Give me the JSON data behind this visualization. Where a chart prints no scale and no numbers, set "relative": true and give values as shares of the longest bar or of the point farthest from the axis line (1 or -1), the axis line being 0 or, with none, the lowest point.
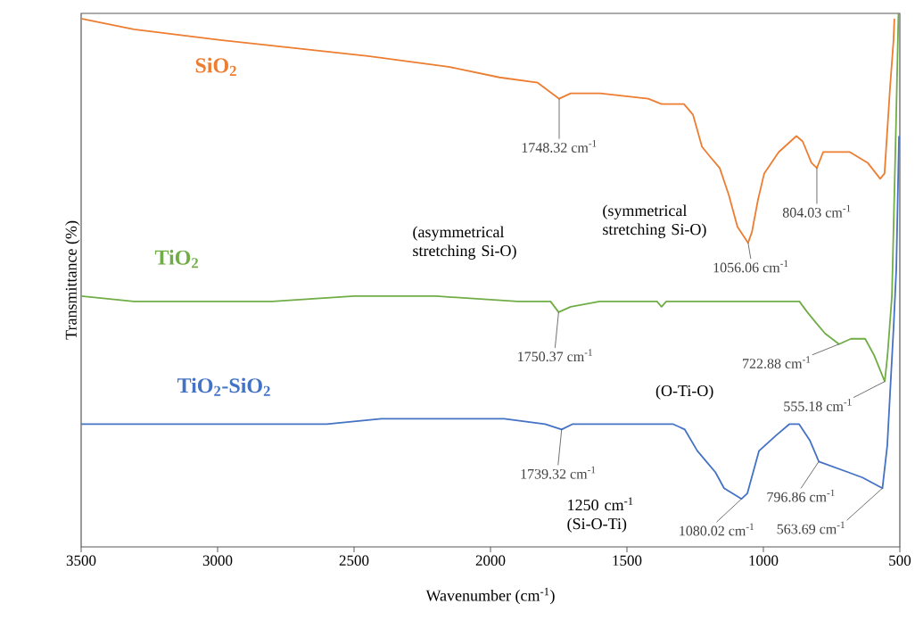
{
  "chart_data": {
    "type": "line",
    "relative": true,
    "xlabel": "Wavenumber (cm$^{-1}$)",
    "ylabel": "Transmittance (%)",
    "xlim": [
      3500,
      500
    ],
    "xticks": [
      3500,
      3000,
      2500,
      2000,
      1500,
      1000,
      500
    ],
    "series": [
      {
        "name": "SiO$_{2}$",
        "color": "#ed7d31",
        "x": [
          3500,
          3307,
          2990,
          2448,
          2154,
          1967,
          1827,
          1748.32,
          1706,
          1598,
          1422,
          1373,
          1346,
          1291,
          1258,
          1225,
          1193,
          1160,
          1127,
          1095,
          1056.06,
          1042,
          1020,
          997,
          944,
          879,
          856,
          824,
          804.03,
          781,
          748,
          683,
          618,
          572,
          556,
          536,
          523,
          520
        ],
        "values": [
          0.99,
          0.97,
          0.95,
          0.92,
          0.9,
          0.88,
          0.87,
          0.84,
          0.85,
          0.85,
          0.84,
          0.83,
          0.83,
          0.83,
          0.81,
          0.75,
          0.73,
          0.71,
          0.66,
          0.6,
          0.57,
          0.59,
          0.65,
          0.7,
          0.74,
          0.77,
          0.76,
          0.72,
          0.71,
          0.74,
          0.74,
          0.74,
          0.72,
          0.69,
          0.7,
          0.86,
          0.95,
          0.99
        ]
      },
      {
        "name": "TiO$_{2}$",
        "color": "#70ad47",
        "x": [
          3500,
          3307,
          3000,
          2800,
          2500,
          2200,
          1900,
          1780,
          1750.37,
          1706,
          1600,
          1390,
          1373,
          1356,
          1250,
          1100,
          868,
          839,
          807,
          774,
          722.88,
          679,
          627,
          595,
          555.18,
          545,
          529,
          515,
          505
        ],
        "values": [
          0.47,
          0.46,
          0.46,
          0.46,
          0.47,
          0.47,
          0.46,
          0.46,
          0.44,
          0.45,
          0.46,
          0.46,
          0.45,
          0.46,
          0.46,
          0.46,
          0.46,
          0.44,
          0.42,
          0.4,
          0.38,
          0.39,
          0.39,
          0.36,
          0.31,
          0.36,
          0.47,
          0.77,
          1.0
        ]
      },
      {
        "name": "TiO$_{2}$-SiO$_{2}$",
        "color": "#4472c4",
        "x": [
          3500,
          3400,
          3200,
          2900,
          2750,
          2600,
          2400,
          2150,
          1950,
          1800,
          1739.32,
          1700,
          1330,
          1288,
          1242,
          1209,
          1176,
          1144,
          1080.02,
          1059,
          1016,
          951,
          905,
          869,
          830,
          796.86,
          690,
          637,
          563.69,
          546,
          523,
          513,
          503
        ],
        "values": [
          0.23,
          0.23,
          0.23,
          0.23,
          0.23,
          0.23,
          0.24,
          0.24,
          0.24,
          0.23,
          0.22,
          0.23,
          0.23,
          0.22,
          0.18,
          0.16,
          0.14,
          0.11,
          0.09,
          0.1,
          0.18,
          0.21,
          0.23,
          0.23,
          0.2,
          0.16,
          0.14,
          0.13,
          0.11,
          0.19,
          0.41,
          0.52,
          0.77
        ]
      }
    ],
    "annotations": [
      {
        "text": "1748.32 cm$^{-1}$",
        "x": 1748.32,
        "y": 0.84
      },
      {
        "text": "804.03 cm$^{-1}$",
        "x": 804.03,
        "y": 0.71
      },
      {
        "text": "1056.06 cm$^{-1}$",
        "x": 1056.06,
        "y": 0.57
      },
      {
        "text": "1750.37 cm$^{-1}$",
        "x": 1750.37,
        "y": 0.44
      },
      {
        "text": "722.88 cm$^{-1}$",
        "x": 722.88,
        "y": 0.38
      },
      {
        "text": "555.18 cm$^{-1}$",
        "x": 555.18,
        "y": 0.31
      },
      {
        "text": "1739.32 cm$^{-1}$",
        "x": 1739.32,
        "y": 0.22
      },
      {
        "text": "1080.02 cm$^{-1}$",
        "x": 1080.02,
        "y": 0.09
      },
      {
        "text": "796.86 cm$^{-1}$",
        "x": 796.86,
        "y": 0.16
      },
      {
        "text": "563.69 cm$^{-1}$",
        "x": 563.69,
        "y": 0.11
      },
      "(asymmetrical stretching Si-O)",
      "(symmetrical stretching  Si-O)",
      "(O-Ti-O)",
      "1250 cm$^{-1}$ (Si-O-Ti)"
    ]
  }
}
